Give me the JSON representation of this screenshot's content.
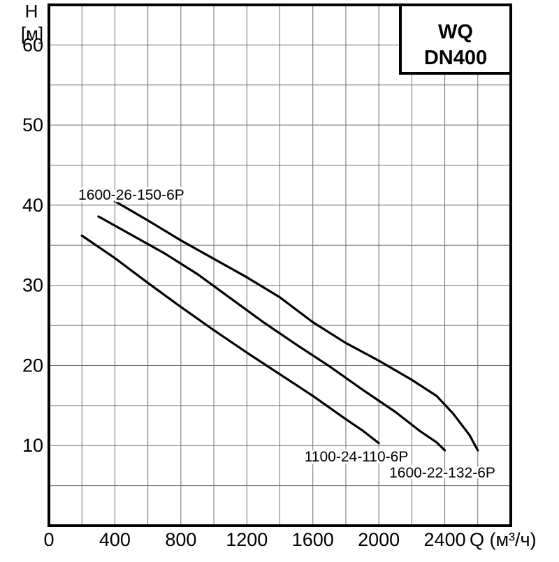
{
  "page": {
    "background": "#ffffff"
  },
  "chart_data": {
    "type": "line",
    "title_box": {
      "line1": "WQ",
      "line2": "DN400"
    },
    "y_axis": {
      "name": "H",
      "unit": "[м]",
      "ticks": [
        60,
        50,
        40,
        30,
        20,
        10
      ],
      "range": [
        0,
        65
      ],
      "grid_step": 5
    },
    "x_axis": {
      "label": "Q (м³/ч)",
      "ticks": [
        0,
        400,
        800,
        1200,
        1600,
        2000,
        2400
      ],
      "range": [
        0,
        2800
      ],
      "grid_step": 200
    },
    "grid": true,
    "legend_position": "labels-on-chart",
    "colors": {
      "curve": "#000000",
      "grid": "#6e6e6e",
      "frame": "#000000",
      "text": "#000000",
      "label_halo": "#ffffff"
    },
    "series": [
      {
        "name": "1600-26-150-6P",
        "label_anchor": {
          "q": 178,
          "h": 40.7,
          "align": "start"
        },
        "points": [
          [
            400,
            40.5
          ],
          [
            600,
            38.1
          ],
          [
            800,
            35.6
          ],
          [
            1000,
            33.3
          ],
          [
            1200,
            31.0
          ],
          [
            1400,
            28.5
          ],
          [
            1600,
            25.4
          ],
          [
            1800,
            22.8
          ],
          [
            2000,
            20.6
          ],
          [
            2200,
            18.2
          ],
          [
            2350,
            16.2
          ],
          [
            2450,
            14.0
          ],
          [
            2550,
            11.3
          ],
          [
            2600,
            9.4
          ]
        ]
      },
      {
        "name": "1600-22-132-6P",
        "label_anchor": {
          "q": 2385,
          "h": 6.0,
          "align": "middle"
        },
        "points": [
          [
            300,
            38.6
          ],
          [
            500,
            36.3
          ],
          [
            700,
            34.0
          ],
          [
            900,
            31.4
          ],
          [
            1100,
            28.4
          ],
          [
            1300,
            25.4
          ],
          [
            1500,
            22.6
          ],
          [
            1700,
            19.9
          ],
          [
            1900,
            17.0
          ],
          [
            2100,
            14.2
          ],
          [
            2250,
            11.8
          ],
          [
            2350,
            10.4
          ],
          [
            2400,
            9.4
          ]
        ]
      },
      {
        "name": "1100-24-110-6P",
        "label_anchor": {
          "q": 1864,
          "h": 8.0,
          "align": "middle"
        },
        "points": [
          [
            200,
            36.2
          ],
          [
            400,
            33.4
          ],
          [
            600,
            30.3
          ],
          [
            800,
            27.3
          ],
          [
            1000,
            24.4
          ],
          [
            1200,
            21.6
          ],
          [
            1400,
            18.9
          ],
          [
            1600,
            16.2
          ],
          [
            1800,
            13.3
          ],
          [
            1900,
            11.9
          ],
          [
            2000,
            10.3
          ]
        ]
      }
    ]
  }
}
